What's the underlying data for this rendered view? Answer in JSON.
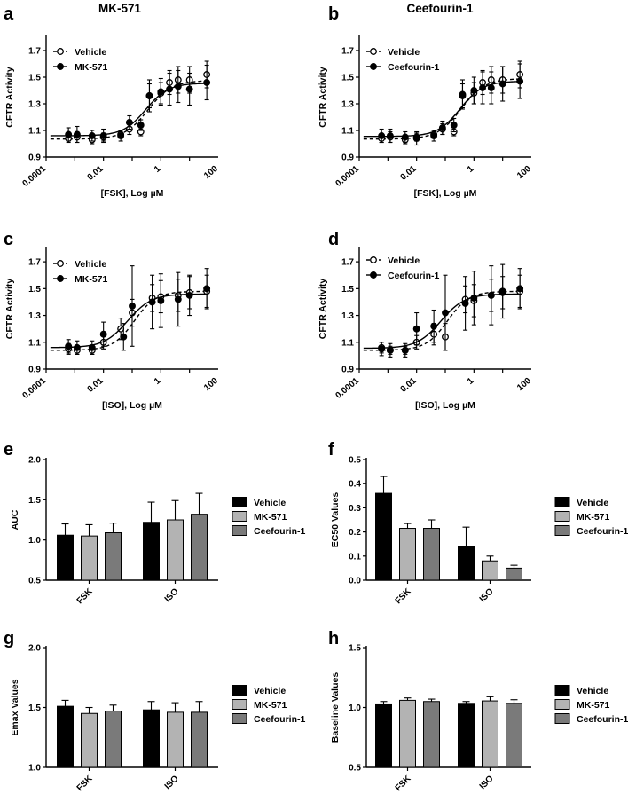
{
  "figure": {
    "title_left": "MK-571",
    "title_right": "Ceefourin-1"
  },
  "chart_data": [
    {
      "id": "a",
      "label": "a",
      "type": "line",
      "xlabel": "[FSK], Log µM",
      "ylabel": "CFTR Activity",
      "xscale": "log",
      "xlim": [
        0.0001,
        100
      ],
      "ylim": [
        0.9,
        1.8
      ],
      "xticks": [
        0.0001,
        0.01,
        1,
        100
      ],
      "xtick_labels": [
        "0.0001",
        "0.01",
        "1",
        "100"
      ],
      "yticks": [
        0.9,
        1.1,
        1.3,
        1.5,
        1.7
      ],
      "ytick_labels": [
        "0.9",
        "1.1",
        "1.3",
        "1.5",
        "1.7"
      ],
      "legend_labels": [
        "Vehicle",
        "MK-571"
      ],
      "series": [
        {
          "name": "Vehicle",
          "marker": "open",
          "line": "dashed",
          "x": [
            0.0006,
            0.0012,
            0.004,
            0.01,
            0.04,
            0.08,
            0.2,
            0.4,
            1,
            2,
            4,
            10,
            40
          ],
          "y": [
            1.04,
            1.05,
            1.03,
            1.05,
            1.07,
            1.11,
            1.09,
            1.36,
            1.38,
            1.46,
            1.48,
            1.48,
            1.52
          ],
          "err": [
            0.03,
            0.04,
            0.03,
            0.03,
            0.03,
            0.04,
            0.03,
            0.09,
            0.08,
            0.09,
            0.1,
            0.1,
            0.1
          ],
          "fit": {
            "bottom": 1.035,
            "top": 1.475,
            "ec50": 0.36,
            "hill": 1.05
          }
        },
        {
          "name": "MK-571",
          "marker": "filled",
          "line": "solid",
          "x": [
            0.0006,
            0.0012,
            0.004,
            0.01,
            0.04,
            0.08,
            0.2,
            0.4,
            1,
            2,
            4,
            10,
            40
          ],
          "y": [
            1.07,
            1.07,
            1.06,
            1.06,
            1.06,
            1.16,
            1.14,
            1.36,
            1.39,
            1.41,
            1.43,
            1.41,
            1.46
          ],
          "err": [
            0.05,
            0.06,
            0.04,
            0.05,
            0.04,
            0.05,
            0.04,
            0.12,
            0.1,
            0.12,
            0.12,
            0.12,
            0.13
          ],
          "fit": {
            "bottom": 1.06,
            "top": 1.455,
            "ec50": 0.3,
            "hill": 1.1
          }
        }
      ]
    },
    {
      "id": "b",
      "label": "b",
      "type": "line",
      "xlabel": "[FSK], Log µM",
      "ylabel": "CFTR Activity",
      "xscale": "log",
      "xlim": [
        0.0001,
        100
      ],
      "ylim": [
        0.9,
        1.8
      ],
      "xticks": [
        0.0001,
        0.01,
        1,
        100
      ],
      "xtick_labels": [
        "0.0001",
        "0.01",
        "1",
        "100"
      ],
      "yticks": [
        0.9,
        1.1,
        1.3,
        1.5,
        1.7
      ],
      "ytick_labels": [
        "0.9",
        "1.1",
        "1.3",
        "1.5",
        "1.7"
      ],
      "legend_labels": [
        "Vehicle",
        "Ceefourin-1"
      ],
      "series": [
        {
          "name": "Vehicle",
          "marker": "open",
          "line": "dashed",
          "x": [
            0.0006,
            0.0012,
            0.004,
            0.01,
            0.04,
            0.08,
            0.2,
            0.4,
            1,
            2,
            4,
            10,
            40
          ],
          "y": [
            1.04,
            1.05,
            1.03,
            1.05,
            1.07,
            1.11,
            1.09,
            1.36,
            1.38,
            1.46,
            1.48,
            1.48,
            1.52
          ],
          "err": [
            0.03,
            0.04,
            0.03,
            0.03,
            0.03,
            0.04,
            0.03,
            0.09,
            0.08,
            0.09,
            0.1,
            0.1,
            0.1
          ],
          "fit": {
            "bottom": 1.035,
            "top": 1.49,
            "ec50": 0.36,
            "hill": 1.05
          }
        },
        {
          "name": "Ceefourin-1",
          "marker": "filled",
          "line": "solid",
          "x": [
            0.0006,
            0.0012,
            0.004,
            0.01,
            0.04,
            0.08,
            0.2,
            0.4,
            1,
            2,
            4,
            10,
            40
          ],
          "y": [
            1.06,
            1.06,
            1.05,
            1.04,
            1.06,
            1.12,
            1.14,
            1.37,
            1.4,
            1.42,
            1.42,
            1.45,
            1.47
          ],
          "err": [
            0.05,
            0.05,
            0.04,
            0.05,
            0.04,
            0.05,
            0.05,
            0.11,
            0.1,
            0.12,
            0.12,
            0.13,
            0.13
          ],
          "fit": {
            "bottom": 1.055,
            "top": 1.47,
            "ec50": 0.33,
            "hill": 1.1
          }
        }
      ]
    },
    {
      "id": "c",
      "label": "c",
      "type": "line",
      "xlabel": "[ISO], Log µM",
      "ylabel": "CFTR Activity",
      "xscale": "log",
      "xlim": [
        0.0001,
        100
      ],
      "ylim": [
        0.9,
        1.8
      ],
      "xticks": [
        0.0001,
        0.01,
        1,
        100
      ],
      "xtick_labels": [
        "0.0001",
        "0.01",
        "1",
        "100"
      ],
      "yticks": [
        0.9,
        1.1,
        1.3,
        1.5,
        1.7
      ],
      "ytick_labels": [
        "0.9",
        "1.1",
        "1.3",
        "1.5",
        "1.7"
      ],
      "legend_labels": [
        "Vehicle",
        "MK-571"
      ],
      "series": [
        {
          "name": "Vehicle",
          "marker": "open",
          "line": "dashed",
          "x": [
            0.0006,
            0.0012,
            0.004,
            0.01,
            0.04,
            0.1,
            0.5,
            1,
            4,
            10,
            40
          ],
          "y": [
            1.05,
            1.04,
            1.04,
            1.1,
            1.2,
            1.32,
            1.43,
            1.44,
            1.45,
            1.47,
            1.48
          ],
          "err": [
            0.04,
            0.03,
            0.03,
            0.05,
            0.08,
            0.1,
            0.1,
            0.12,
            0.12,
            0.12,
            0.12
          ],
          "fit": {
            "bottom": 1.04,
            "top": 1.48,
            "ec50": 0.12,
            "hill": 1.15
          }
        },
        {
          "name": "MK-571",
          "marker": "filled",
          "line": "solid",
          "x": [
            0.0006,
            0.0012,
            0.004,
            0.01,
            0.05,
            0.1,
            0.5,
            1,
            4,
            10,
            40
          ],
          "y": [
            1.07,
            1.06,
            1.06,
            1.16,
            1.14,
            1.37,
            1.4,
            1.41,
            1.42,
            1.45,
            1.5
          ],
          "err": [
            0.05,
            0.05,
            0.05,
            0.09,
            0.1,
            0.3,
            0.2,
            0.2,
            0.2,
            0.15,
            0.15
          ],
          "fit": {
            "bottom": 1.06,
            "top": 1.46,
            "ec50": 0.07,
            "hill": 1.05
          }
        }
      ]
    },
    {
      "id": "d",
      "label": "d",
      "type": "line",
      "xlabel": "[ISO], Log µM",
      "ylabel": "CFTR Activity",
      "xscale": "log",
      "xlim": [
        0.0001,
        100
      ],
      "ylim": [
        0.9,
        1.8
      ],
      "xticks": [
        0.0001,
        0.01,
        1,
        100
      ],
      "xtick_labels": [
        "0.0001",
        "0.01",
        "1",
        "100"
      ],
      "yticks": [
        0.9,
        1.1,
        1.3,
        1.5,
        1.7
      ],
      "ytick_labels": [
        "0.9",
        "1.1",
        "1.3",
        "1.5",
        "1.7"
      ],
      "legend_labels": [
        "Vehicle",
        "Ceefourin-1"
      ],
      "series": [
        {
          "name": "Vehicle",
          "marker": "open",
          "line": "dashed",
          "x": [
            0.0006,
            0.0012,
            0.004,
            0.01,
            0.04,
            0.1,
            0.5,
            1,
            4,
            10,
            40
          ],
          "y": [
            1.06,
            1.04,
            1.04,
            1.1,
            1.16,
            1.14,
            1.42,
            1.41,
            1.45,
            1.47,
            1.48
          ],
          "err": [
            0.04,
            0.03,
            0.03,
            0.05,
            0.08,
            0.1,
            0.1,
            0.12,
            0.12,
            0.12,
            0.12
          ],
          "fit": {
            "bottom": 1.04,
            "top": 1.48,
            "ec50": 0.12,
            "hill": 1.15
          }
        },
        {
          "name": "Ceefourin-1",
          "marker": "filled",
          "line": "solid",
          "x": [
            0.0006,
            0.0012,
            0.004,
            0.01,
            0.04,
            0.1,
            0.5,
            1,
            4,
            10,
            40
          ],
          "y": [
            1.05,
            1.04,
            1.04,
            1.2,
            1.22,
            1.32,
            1.39,
            1.43,
            1.45,
            1.48,
            1.5
          ],
          "err": [
            0.05,
            0.05,
            0.05,
            0.12,
            0.12,
            0.28,
            0.2,
            0.2,
            0.22,
            0.2,
            0.15
          ],
          "fit": {
            "bottom": 1.055,
            "top": 1.46,
            "ec50": 0.07,
            "hill": 1.05
          }
        }
      ]
    },
    {
      "id": "e",
      "label": "e",
      "type": "bar",
      "ylabel": "AUC",
      "ylim": [
        0.5,
        2.0
      ],
      "yticks": [
        0.5,
        1.0,
        1.5,
        2.0
      ],
      "ytick_labels": [
        "0.5",
        "1.0",
        "1.5",
        "2.0"
      ],
      "categories": [
        "FSK",
        "ISO"
      ],
      "series": [
        {
          "name": "Vehicle",
          "color": "#000000",
          "values": [
            1.06,
            1.22
          ],
          "err": [
            0.14,
            0.25
          ]
        },
        {
          "name": "MK-571",
          "color": "#b3b3b3",
          "values": [
            1.05,
            1.25
          ],
          "err": [
            0.14,
            0.24
          ]
        },
        {
          "name": "Ceefourin-1",
          "color": "#7a7a7a",
          "values": [
            1.09,
            1.32
          ],
          "err": [
            0.12,
            0.26
          ]
        }
      ]
    },
    {
      "id": "f",
      "label": "f",
      "type": "bar",
      "ylabel": "EC50 Values",
      "ylim": [
        0.0,
        0.5
      ],
      "yticks": [
        0.0,
        0.1,
        0.2,
        0.3,
        0.4,
        0.5
      ],
      "ytick_labels": [
        "0.0",
        "0.1",
        "0.2",
        "0.3",
        "0.4",
        "0.5"
      ],
      "categories": [
        "FSK",
        "ISO"
      ],
      "series": [
        {
          "name": "Vehicle",
          "color": "#000000",
          "values": [
            0.36,
            0.14
          ],
          "err": [
            0.07,
            0.08
          ]
        },
        {
          "name": "MK-571",
          "color": "#b3b3b3",
          "values": [
            0.215,
            0.08
          ],
          "err": [
            0.02,
            0.02
          ]
        },
        {
          "name": "Ceefourin-1",
          "color": "#7a7a7a",
          "values": [
            0.215,
            0.05
          ],
          "err": [
            0.035,
            0.012
          ]
        }
      ]
    },
    {
      "id": "g",
      "label": "g",
      "type": "bar",
      "ylabel": "Emax Values",
      "ylim": [
        1.0,
        2.0
      ],
      "yticks": [
        1.0,
        1.5,
        2.0
      ],
      "ytick_labels": [
        "1.0",
        "1.5",
        "2.0"
      ],
      "categories": [
        "FSK",
        "ISO"
      ],
      "series": [
        {
          "name": "Vehicle",
          "color": "#000000",
          "values": [
            1.51,
            1.48
          ],
          "err": [
            0.05,
            0.07
          ]
        },
        {
          "name": "MK-571",
          "color": "#b3b3b3",
          "values": [
            1.45,
            1.46
          ],
          "err": [
            0.05,
            0.08
          ]
        },
        {
          "name": "Ceefourin-1",
          "color": "#7a7a7a",
          "values": [
            1.47,
            1.46
          ],
          "err": [
            0.05,
            0.09
          ]
        }
      ]
    },
    {
      "id": "h",
      "label": "h",
      "type": "bar",
      "ylabel": "Baseline Values",
      "ylim": [
        0.5,
        1.5
      ],
      "yticks": [
        0.5,
        1.0,
        1.5
      ],
      "ytick_labels": [
        "0.5",
        "1.0",
        "1.5"
      ],
      "categories": [
        "FSK",
        "ISO"
      ],
      "series": [
        {
          "name": "Vehicle",
          "color": "#000000",
          "values": [
            1.03,
            1.035
          ],
          "err": [
            0.02,
            0.015
          ]
        },
        {
          "name": "MK-571",
          "color": "#b3b3b3",
          "values": [
            1.06,
            1.055
          ],
          "err": [
            0.02,
            0.035
          ]
        },
        {
          "name": "Ceefourin-1",
          "color": "#7a7a7a",
          "values": [
            1.05,
            1.035
          ],
          "err": [
            0.02,
            0.03
          ]
        }
      ]
    }
  ]
}
